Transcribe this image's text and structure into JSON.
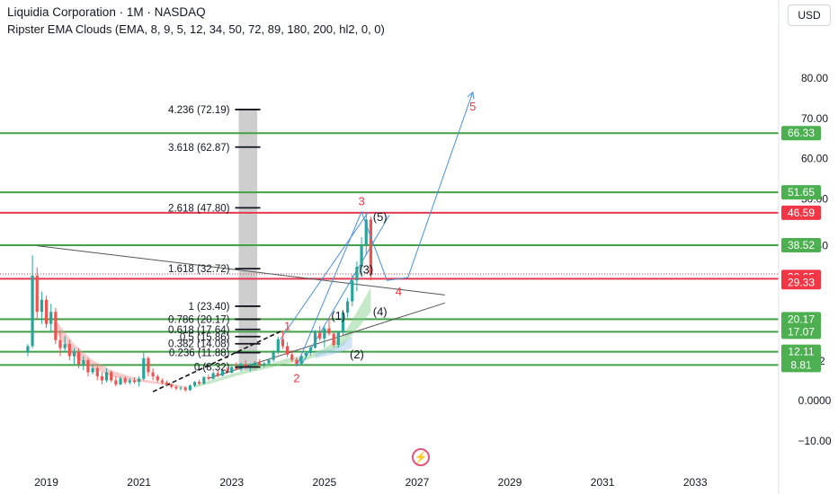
{
  "header": {
    "title": "Liquidia Corporation · 1M · NASDAQ",
    "indicator": "Ripster EMA Clouds (EMA, 8, 9, 5, 12, 34, 50, 72, 89, 180, 200, hl2, 0, 0)",
    "currency_button": "USD"
  },
  "colors": {
    "green": "#43a047",
    "red": "#e53950",
    "blue": "#4a90d9",
    "candle_up": "#26a69a",
    "candle_down": "#ef5350",
    "label_red": "#f23645",
    "label_green": "#4caf50",
    "fib": "#131722"
  },
  "icons": {
    "logo": "flash-logo-icon"
  },
  "chart_data": {
    "type": "candlestick",
    "title": "Liquidia Corporation · 1M · NASDAQ",
    "x_axis": {
      "ticks": [
        "2019",
        "2021",
        "2023",
        "2025",
        "2027",
        "2029",
        "2031",
        "2033"
      ],
      "range": [
        2018.0,
        2034.8
      ]
    },
    "y_axis": {
      "ticks": [
        "80.00",
        "70.00",
        "60.00",
        "50.00",
        "38.40",
        "9.82",
        "0.0000",
        "−10.00"
      ],
      "range": [
        -16.5,
        90
      ]
    },
    "price_labels": [
      {
        "text": "66.33",
        "value": 66.33,
        "color": "green"
      },
      {
        "text": "51.65",
        "value": 51.65,
        "color": "green"
      },
      {
        "text": "46.59",
        "value": 46.59,
        "color": "red"
      },
      {
        "text": "38.52",
        "value": 38.52,
        "color": "green"
      },
      {
        "text": "30.65",
        "value": 30.65,
        "color": "red"
      },
      {
        "text": "29.33",
        "value": 29.33,
        "color": "red"
      },
      {
        "text": "20.17",
        "value": 20.17,
        "color": "green"
      },
      {
        "text": "17.07",
        "value": 17.07,
        "color": "green"
      },
      {
        "text": "12.11",
        "value": 12.11,
        "color": "green"
      },
      {
        "text": "8.81",
        "value": 8.81,
        "color": "green"
      }
    ],
    "horizontal_lines": [
      {
        "value": 66.33,
        "color": "green"
      },
      {
        "value": 51.65,
        "color": "green"
      },
      {
        "value": 46.59,
        "color": "red"
      },
      {
        "value": 38.52,
        "color": "green"
      },
      {
        "value": 30.2,
        "color": "red"
      },
      {
        "value": 20.17,
        "color": "green"
      },
      {
        "value": 17.07,
        "color": "green"
      },
      {
        "value": 12.11,
        "color": "green"
      },
      {
        "value": 8.81,
        "color": "green"
      }
    ],
    "fib_levels": [
      {
        "label": "4.236 (72.19)",
        "value": 72.19
      },
      {
        "label": "3.618 (62.87)",
        "value": 62.87
      },
      {
        "label": "2.618 (47.80)",
        "value": 47.8
      },
      {
        "label": "1.618 (32.72)",
        "value": 32.72
      },
      {
        "label": "1 (23.40)",
        "value": 23.4
      },
      {
        "label": "0.786 (20.17)",
        "value": 20.17
      },
      {
        "label": "0.618 (17.64)",
        "value": 17.64
      },
      {
        "label": "0.5 (15.86)",
        "value": 15.86
      },
      {
        "label": "0.382 (14.08)",
        "value": 14.08
      },
      {
        "label": "0.236 (11.88)",
        "value": 11.88
      },
      {
        "label": "0 (8.32)",
        "value": 8.32
      }
    ],
    "wave_labels": [
      {
        "text": "1",
        "x": 2024.2,
        "y": 17.5,
        "color": "red"
      },
      {
        "text": "2",
        "x": 2024.4,
        "y": 4.5,
        "color": "red"
      },
      {
        "text": "3",
        "x": 2025.8,
        "y": 48.5,
        "color": "red"
      },
      {
        "text": "4",
        "x": 2026.6,
        "y": 26.0,
        "color": "red"
      },
      {
        "text": "5",
        "x": 2028.2,
        "y": 72.0,
        "color": "red"
      },
      {
        "text": "(1)",
        "x": 2025.3,
        "y": 20.0,
        "color": "black"
      },
      {
        "text": "(2)",
        "x": 2025.7,
        "y": 10.5,
        "color": "black"
      },
      {
        "text": "(3)",
        "x": 2025.9,
        "y": 31.5,
        "color": "black"
      },
      {
        "text": "(4)",
        "x": 2026.2,
        "y": 21.0,
        "color": "black"
      },
      {
        "text": "(5)",
        "x": 2026.2,
        "y": 44.5,
        "color": "black"
      }
    ],
    "projection_path": [
      [
        2024.4,
        8.5
      ],
      [
        2025.8,
        46.8
      ],
      [
        2026.35,
        29.8
      ],
      [
        2026.8,
        30.5
      ],
      [
        2028.2,
        76.5
      ]
    ],
    "channel_lines": [
      {
        "from": [
          2024.05,
          15.2
        ],
        "to": [
          2025.95,
          46.8
        ]
      },
      {
        "from": [
          2024.5,
          8.8
        ],
        "to": [
          2026.4,
          46.0
        ]
      }
    ],
    "triangle": {
      "upper": {
        "from": [
          2018.8,
          38.4
        ],
        "to": [
          2027.6,
          26.2
        ]
      },
      "lower": {
        "from": [
          2022.5,
          5.5
        ],
        "to": [
          2027.6,
          24.2
        ]
      }
    },
    "trendline": {
      "from": [
        2021.3,
        2.2
      ],
      "to": [
        2024.1,
        17.4
      ]
    },
    "fib_shaded_band": {
      "x_from": 2023.15,
      "x_to": 2023.55,
      "y_from": 7.5,
      "y_to": 72.19
    },
    "candles": [
      [
        2018.6,
        12,
        14,
        11,
        13.5
      ],
      [
        2018.7,
        13.5,
        36,
        13,
        31
      ],
      [
        2018.8,
        31,
        33,
        20,
        22
      ],
      [
        2018.9,
        22,
        27,
        19,
        25
      ],
      [
        2019.0,
        25,
        26,
        18,
        19
      ],
      [
        2019.1,
        19,
        24,
        17,
        22
      ],
      [
        2019.2,
        22,
        23,
        14,
        15
      ],
      [
        2019.3,
        15,
        17,
        11,
        13
      ],
      [
        2019.4,
        13,
        16,
        12,
        14
      ],
      [
        2019.5,
        14,
        15,
        10,
        11
      ],
      [
        2019.6,
        11,
        13,
        9,
        12
      ],
      [
        2019.7,
        12,
        13,
        8,
        9
      ],
      [
        2019.8,
        9,
        11,
        7.5,
        10
      ],
      [
        2019.9,
        10,
        10.5,
        6,
        7
      ],
      [
        2020.0,
        7,
        9,
        6.5,
        8
      ],
      [
        2020.1,
        8,
        8.5,
        5,
        6
      ],
      [
        2020.2,
        6,
        7,
        4,
        5
      ],
      [
        2020.3,
        5,
        8,
        4.5,
        7
      ],
      [
        2020.4,
        7,
        7.5,
        4.5,
        5
      ],
      [
        2020.5,
        5,
        6,
        3.5,
        4
      ],
      [
        2020.6,
        4,
        6,
        3.8,
        5.5
      ],
      [
        2020.7,
        5.5,
        6,
        4,
        4.5
      ],
      [
        2020.8,
        4.5,
        5.5,
        4,
        5
      ],
      [
        2020.9,
        5,
        5.8,
        4.2,
        4.6
      ],
      [
        2021.0,
        4.6,
        6,
        3.5,
        5.4
      ],
      [
        2021.1,
        5.4,
        12,
        5,
        10.5
      ],
      [
        2021.2,
        10.5,
        11,
        6,
        7
      ],
      [
        2021.3,
        7,
        8,
        5,
        6
      ],
      [
        2021.4,
        6,
        6.5,
        4.5,
        5
      ],
      [
        2021.5,
        5,
        5.5,
        4,
        4.5
      ],
      [
        2021.6,
        4.5,
        5,
        3.5,
        4
      ],
      [
        2021.7,
        4,
        4.3,
        3,
        3.4
      ],
      [
        2021.8,
        3.4,
        3.8,
        2.6,
        3
      ],
      [
        2021.9,
        3,
        3.5,
        2.5,
        3.2
      ],
      [
        2022.0,
        3.2,
        3.6,
        2.2,
        2.6
      ],
      [
        2022.1,
        2.6,
        4,
        2.4,
        3.7
      ],
      [
        2022.2,
        3.7,
        4.8,
        3.3,
        4.6
      ],
      [
        2022.3,
        4.6,
        5.2,
        3.8,
        4.2
      ],
      [
        2022.4,
        4.2,
        6,
        4,
        5.8
      ],
      [
        2022.5,
        5.8,
        6.4,
        5,
        5.4
      ],
      [
        2022.6,
        5.4,
        7.2,
        5.2,
        6.8
      ],
      [
        2022.7,
        6.8,
        7.5,
        5.8,
        6.2
      ],
      [
        2022.8,
        6.2,
        7.8,
        6,
        7.4
      ],
      [
        2022.9,
        7.4,
        8.2,
        6.6,
        6.9
      ],
      [
        2023.0,
        6.9,
        8.6,
        6.7,
        8.3
      ],
      [
        2023.1,
        8.3,
        9.5,
        7.5,
        7.8
      ],
      [
        2023.2,
        7.8,
        9.4,
        7.2,
        9
      ],
      [
        2023.3,
        9,
        10,
        7.8,
        8.2
      ],
      [
        2023.4,
        8.2,
        9.2,
        7.2,
        8.8
      ],
      [
        2023.5,
        8.8,
        9.8,
        8,
        9.4
      ],
      [
        2023.6,
        9.4,
        10.2,
        8.6,
        8.9
      ],
      [
        2023.7,
        8.9,
        9.6,
        8.2,
        9.2
      ],
      [
        2023.8,
        9.2,
        10.4,
        8.8,
        10.1
      ],
      [
        2023.9,
        10.1,
        12.5,
        9.6,
        12.1
      ],
      [
        2024.0,
        12.1,
        15.8,
        11.5,
        15.2
      ],
      [
        2024.1,
        15.2,
        17.4,
        12.8,
        13.5
      ],
      [
        2024.2,
        13.5,
        14.5,
        10.8,
        11.4
      ],
      [
        2024.3,
        11.4,
        12.5,
        9.6,
        10.1
      ],
      [
        2024.4,
        10.1,
        10.8,
        8.4,
        9.1
      ],
      [
        2024.5,
        9.1,
        11.6,
        8.7,
        11.1
      ],
      [
        2024.6,
        11.1,
        12.2,
        10.4,
        11.8
      ],
      [
        2024.7,
        11.8,
        13.6,
        11.2,
        13.1
      ],
      [
        2024.8,
        13.1,
        17.5,
        12.9,
        16.8
      ],
      [
        2024.9,
        16.8,
        18.5,
        14.8,
        15.4
      ],
      [
        2025.0,
        15.4,
        18.4,
        13.2,
        17.9
      ],
      [
        2025.1,
        17.9,
        20.6,
        16.1,
        16.6
      ],
      [
        2025.2,
        16.6,
        16.9,
        13.2,
        13.8
      ],
      [
        2025.3,
        13.8,
        17.3,
        13.1,
        16.9
      ],
      [
        2025.4,
        16.9,
        22.5,
        16.3,
        21.8
      ],
      [
        2025.5,
        21.8,
        25.5,
        20.6,
        24.6
      ],
      [
        2025.6,
        24.6,
        31.2,
        23.4,
        29.8
      ],
      [
        2025.7,
        29.8,
        34.5,
        27.1,
        33.2
      ],
      [
        2025.8,
        33.2,
        40.5,
        30.6,
        38.6
      ],
      [
        2025.9,
        38.6,
        46.8,
        36.1,
        44.9
      ],
      [
        2026.0,
        44.9,
        45.6,
        29.8,
        31.2
      ]
    ]
  }
}
